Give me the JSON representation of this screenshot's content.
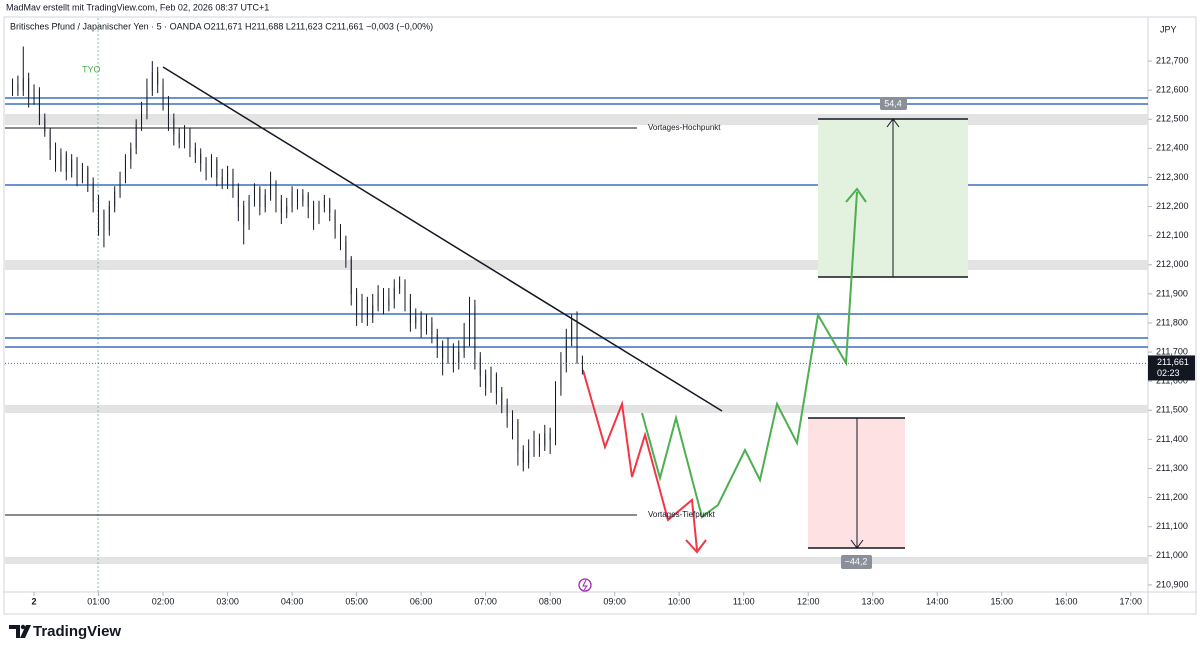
{
  "chart_data": {
    "type": "candlestick",
    "header": "MadMav erstellt mit TradingView.com, Feb 02, 2026 08:37 UTC+1",
    "title": "Britisches Pfund / Japanischer Yen · 5 · OANDA   O211,671  H211,688  L211,623  C211,661  −0,003 (−0,00%)",
    "currency": "JPY",
    "session_label": "TYO",
    "annotations": [
      "Vortages-Hochpunkt",
      "Vortages-Tiefpunkt"
    ],
    "long_label": "54,4",
    "short_label": "−44,2",
    "brand": "TradingView",
    "up_color": "#ffffff",
    "down_color": "#131722",
    "outline_color": "#131722",
    "last_price": {
      "value": 211.661,
      "label": "211,661"
    },
    "countdown": "02:23",
    "xlim": [
      -27,
      1036
    ],
    "ylim": [
      210.879,
      212.848
    ],
    "xticks": [
      {
        "value": 0,
        "label": "2"
      },
      {
        "value": 60,
        "label": "01:00"
      },
      {
        "value": 120,
        "label": "02:00"
      },
      {
        "value": 180,
        "label": "03:00"
      },
      {
        "value": 240,
        "label": "04:00"
      },
      {
        "value": 300,
        "label": "05:00"
      },
      {
        "value": 360,
        "label": "06:00"
      },
      {
        "value": 420,
        "label": "07:00"
      },
      {
        "value": 480,
        "label": "08:00"
      },
      {
        "value": 540,
        "label": "09:00"
      },
      {
        "value": 600,
        "label": "10:00"
      },
      {
        "value": 660,
        "label": "11:00"
      },
      {
        "value": 720,
        "label": "12:00"
      },
      {
        "value": 780,
        "label": "13:00"
      },
      {
        "value": 840,
        "label": "14:00"
      },
      {
        "value": 900,
        "label": "15:00"
      },
      {
        "value": 960,
        "label": "16:00"
      },
      {
        "value": 1020,
        "label": "17:00"
      }
    ],
    "yticks": [
      {
        "value": 210.9,
        "label": "210,900"
      },
      {
        "value": 211.0,
        "label": "211,000"
      },
      {
        "value": 211.1,
        "label": "211,100"
      },
      {
        "value": 211.2,
        "label": "211,200"
      },
      {
        "value": 211.3,
        "label": "211,300"
      },
      {
        "value": 211.4,
        "label": "211,400"
      },
      {
        "value": 211.5,
        "label": "211,500"
      },
      {
        "value": 211.6,
        "label": "211,600"
      },
      {
        "value": 211.7,
        "label": "211,700"
      },
      {
        "value": 211.8,
        "label": "211,800"
      },
      {
        "value": 211.9,
        "label": "211,900"
      },
      {
        "value": 212.0,
        "label": "212,000"
      },
      {
        "value": 212.1,
        "label": "212,100"
      },
      {
        "value": 212.2,
        "label": "212,200"
      },
      {
        "value": 212.3,
        "label": "212,300"
      },
      {
        "value": 212.4,
        "label": "212,400"
      },
      {
        "value": 212.5,
        "label": "212,500"
      },
      {
        "value": 212.6,
        "label": "212,600"
      },
      {
        "value": 212.7,
        "label": "212,700"
      }
    ],
    "candles": [
      [
        -20,
        212.6,
        212.64,
        212.58,
        212.62
      ],
      [
        -15,
        212.62,
        212.65,
        212.58,
        212.6
      ],
      [
        -10,
        212.6,
        212.75,
        212.58,
        212.64
      ],
      [
        -5,
        212.64,
        212.66,
        212.54,
        212.58
      ],
      [
        0,
        212.58,
        212.62,
        212.55,
        212.6
      ],
      [
        5,
        212.6,
        212.61,
        212.48,
        212.5
      ],
      [
        10,
        212.5,
        212.52,
        212.44,
        212.46
      ],
      [
        15,
        212.46,
        212.47,
        212.36,
        212.4
      ],
      [
        20,
        212.4,
        212.42,
        212.32,
        212.34
      ],
      [
        25,
        212.34,
        212.4,
        212.32,
        212.38
      ],
      [
        30,
        212.38,
        212.39,
        212.29,
        212.32
      ],
      [
        35,
        212.32,
        212.38,
        212.3,
        212.36
      ],
      [
        40,
        212.36,
        212.37,
        212.27,
        212.3
      ],
      [
        45,
        212.3,
        212.35,
        212.28,
        212.33
      ],
      [
        50,
        212.33,
        212.34,
        212.25,
        212.28
      ],
      [
        55,
        212.28,
        212.3,
        212.18,
        212.22
      ],
      [
        60,
        212.22,
        212.24,
        212.1,
        212.18
      ],
      [
        65,
        212.18,
        212.19,
        212.06,
        212.12
      ],
      [
        70,
        212.12,
        212.22,
        212.1,
        212.2
      ],
      [
        75,
        212.2,
        212.27,
        212.18,
        212.25
      ],
      [
        80,
        212.25,
        212.32,
        212.23,
        212.3
      ],
      [
        85,
        212.3,
        212.38,
        212.28,
        212.36
      ],
      [
        90,
        212.36,
        212.42,
        212.33,
        212.4
      ],
      [
        95,
        212.4,
        212.5,
        212.38,
        212.48
      ],
      [
        100,
        212.48,
        212.56,
        212.46,
        212.52
      ],
      [
        105,
        212.52,
        212.64,
        212.5,
        212.6
      ],
      [
        110,
        212.6,
        212.7,
        212.58,
        212.66
      ],
      [
        115,
        212.66,
        212.68,
        212.59,
        212.62
      ],
      [
        120,
        212.62,
        212.64,
        212.53,
        212.56
      ],
      [
        125,
        212.56,
        212.58,
        212.46,
        212.5
      ],
      [
        130,
        212.5,
        212.52,
        212.41,
        212.45
      ],
      [
        135,
        212.45,
        212.47,
        212.4,
        212.42
      ],
      [
        140,
        212.42,
        212.48,
        212.4,
        212.46
      ],
      [
        145,
        212.46,
        212.47,
        212.37,
        212.4
      ],
      [
        150,
        212.4,
        212.42,
        212.35,
        212.38
      ],
      [
        155,
        212.38,
        212.4,
        212.32,
        212.35
      ],
      [
        160,
        212.35,
        212.37,
        212.29,
        212.32
      ],
      [
        165,
        212.32,
        212.38,
        212.3,
        212.36
      ],
      [
        170,
        212.36,
        212.37,
        212.27,
        212.3
      ],
      [
        175,
        212.3,
        212.33,
        212.26,
        212.28
      ],
      [
        180,
        212.28,
        212.34,
        212.26,
        212.32
      ],
      [
        185,
        212.32,
        212.33,
        212.23,
        212.26
      ],
      [
        190,
        212.26,
        212.28,
        212.15,
        212.2
      ],
      [
        195,
        212.2,
        212.22,
        212.07,
        212.14
      ],
      [
        200,
        212.14,
        212.24,
        212.12,
        212.22
      ],
      [
        205,
        212.22,
        212.28,
        212.2,
        212.26
      ],
      [
        210,
        212.26,
        212.27,
        212.17,
        212.2
      ],
      [
        215,
        212.2,
        212.26,
        212.18,
        212.24
      ],
      [
        220,
        212.24,
        212.32,
        212.22,
        212.28
      ],
      [
        225,
        212.28,
        212.29,
        212.18,
        212.22
      ],
      [
        230,
        212.22,
        212.24,
        212.14,
        212.18
      ],
      [
        235,
        212.18,
        212.23,
        212.16,
        212.2
      ],
      [
        240,
        212.2,
        212.27,
        212.18,
        212.25
      ],
      [
        245,
        212.25,
        212.26,
        212.19,
        212.22
      ],
      [
        250,
        212.22,
        212.26,
        212.2,
        212.24
      ],
      [
        255,
        212.24,
        212.25,
        212.16,
        212.2
      ],
      [
        260,
        212.2,
        212.22,
        212.12,
        212.16
      ],
      [
        265,
        212.16,
        212.22,
        212.14,
        212.2
      ],
      [
        270,
        212.2,
        212.24,
        212.18,
        212.22
      ],
      [
        275,
        212.22,
        212.23,
        212.15,
        212.18
      ],
      [
        280,
        212.18,
        212.19,
        212.09,
        212.12
      ],
      [
        285,
        212.12,
        212.14,
        212.05,
        212.08
      ],
      [
        290,
        212.08,
        212.1,
        211.99,
        212.02
      ],
      [
        295,
        212.02,
        212.03,
        211.86,
        211.9
      ],
      [
        300,
        211.9,
        211.92,
        211.79,
        211.84
      ],
      [
        305,
        211.84,
        211.9,
        211.8,
        211.88
      ],
      [
        310,
        211.88,
        211.89,
        211.79,
        211.82
      ],
      [
        315,
        211.82,
        211.9,
        211.8,
        211.86
      ],
      [
        320,
        211.86,
        211.93,
        211.84,
        211.9
      ],
      [
        325,
        211.9,
        211.92,
        211.83,
        211.86
      ],
      [
        330,
        211.86,
        211.92,
        211.84,
        211.88
      ],
      [
        335,
        211.88,
        211.95,
        211.85,
        211.92
      ],
      [
        340,
        211.92,
        211.96,
        211.9,
        211.94
      ],
      [
        345,
        211.94,
        211.95,
        211.84,
        211.88
      ],
      [
        350,
        211.88,
        211.9,
        211.77,
        211.8
      ],
      [
        355,
        211.8,
        211.85,
        211.78,
        211.82
      ],
      [
        360,
        211.82,
        211.84,
        211.75,
        211.78
      ],
      [
        365,
        211.78,
        211.83,
        211.76,
        211.8
      ],
      [
        370,
        211.8,
        211.82,
        211.73,
        211.76
      ],
      [
        375,
        211.76,
        211.78,
        211.68,
        211.72
      ],
      [
        380,
        211.72,
        211.74,
        211.62,
        211.68
      ],
      [
        385,
        211.68,
        211.75,
        211.66,
        211.72
      ],
      [
        390,
        211.72,
        211.73,
        211.63,
        211.66
      ],
      [
        395,
        211.66,
        211.74,
        211.64,
        211.7
      ],
      [
        400,
        211.7,
        211.8,
        211.68,
        211.74
      ],
      [
        405,
        211.74,
        211.89,
        211.72,
        211.86
      ],
      [
        410,
        211.86,
        211.88,
        211.64,
        211.68
      ],
      [
        415,
        211.68,
        211.7,
        211.58,
        211.62
      ],
      [
        420,
        211.62,
        211.64,
        211.55,
        211.58
      ],
      [
        425,
        211.58,
        211.65,
        211.56,
        211.62
      ],
      [
        430,
        211.62,
        211.63,
        211.52,
        211.56
      ],
      [
        435,
        211.56,
        211.58,
        211.49,
        211.52
      ],
      [
        440,
        211.52,
        211.54,
        211.44,
        211.48
      ],
      [
        445,
        211.48,
        211.5,
        211.4,
        211.46
      ],
      [
        450,
        211.46,
        211.47,
        211.31,
        211.36
      ],
      [
        455,
        211.36,
        211.38,
        211.29,
        211.32
      ],
      [
        460,
        211.32,
        211.4,
        211.3,
        211.36
      ],
      [
        465,
        211.36,
        211.43,
        211.34,
        211.4
      ],
      [
        470,
        211.4,
        211.42,
        211.34,
        211.38
      ],
      [
        475,
        211.38,
        211.45,
        211.36,
        211.42
      ],
      [
        480,
        211.42,
        211.44,
        211.35,
        211.4
      ],
      [
        485,
        211.4,
        211.6,
        211.38,
        211.58
      ],
      [
        490,
        211.58,
        211.7,
        211.55,
        211.66
      ],
      [
        495,
        211.66,
        211.78,
        211.63,
        211.74
      ],
      [
        500,
        211.74,
        211.83,
        211.72,
        211.8
      ],
      [
        505,
        211.8,
        211.84,
        211.66,
        211.67
      ],
      [
        510,
        211.671,
        211.688,
        211.623,
        211.661
      ]
    ]
  }
}
